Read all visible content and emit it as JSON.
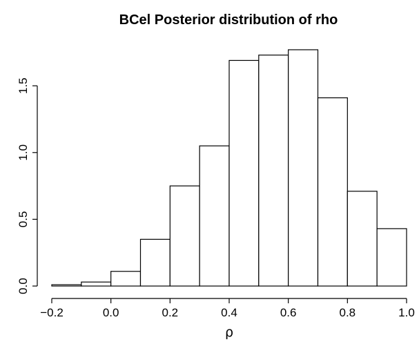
{
  "chart_data": {
    "type": "bar",
    "title": "BCel Posterior distribution of rho",
    "xlabel": "ρ",
    "ylabel": "",
    "bins": [
      {
        "start": -0.2,
        "end": -0.1,
        "value": 0.01
      },
      {
        "start": -0.1,
        "end": 0.0,
        "value": 0.03
      },
      {
        "start": 0.0,
        "end": 0.1,
        "value": 0.11
      },
      {
        "start": 0.1,
        "end": 0.2,
        "value": 0.35
      },
      {
        "start": 0.2,
        "end": 0.3,
        "value": 0.75
      },
      {
        "start": 0.3,
        "end": 0.4,
        "value": 1.05
      },
      {
        "start": 0.4,
        "end": 0.5,
        "value": 1.69
      },
      {
        "start": 0.5,
        "end": 0.6,
        "value": 1.73
      },
      {
        "start": 0.6,
        "end": 0.7,
        "value": 1.77
      },
      {
        "start": 0.7,
        "end": 0.8,
        "value": 1.41
      },
      {
        "start": 0.8,
        "end": 0.9,
        "value": 0.71
      },
      {
        "start": 0.9,
        "end": 1.0,
        "value": 0.43
      }
    ],
    "xlim": [
      -0.2,
      1.0
    ],
    "ylim": [
      0,
      1.77
    ],
    "x_ticks": [
      {
        "value": -0.2,
        "label": "−0.2"
      },
      {
        "value": 0.0,
        "label": "0.0"
      },
      {
        "value": 0.2,
        "label": "0.2"
      },
      {
        "value": 0.4,
        "label": "0.4"
      },
      {
        "value": 0.6,
        "label": "0.6"
      },
      {
        "value": 0.8,
        "label": "0.8"
      },
      {
        "value": 1.0,
        "label": "1.0"
      }
    ],
    "y_ticks": [
      {
        "value": 0.0,
        "label": "0.0"
      },
      {
        "value": 0.5,
        "label": "0.5"
      },
      {
        "value": 1.0,
        "label": "1.0"
      },
      {
        "value": 1.5,
        "label": "1.5"
      }
    ],
    "grid": false,
    "colors": {
      "bar_fill": "#ffffff",
      "bar_stroke": "#000000",
      "axis": "#000000"
    }
  }
}
